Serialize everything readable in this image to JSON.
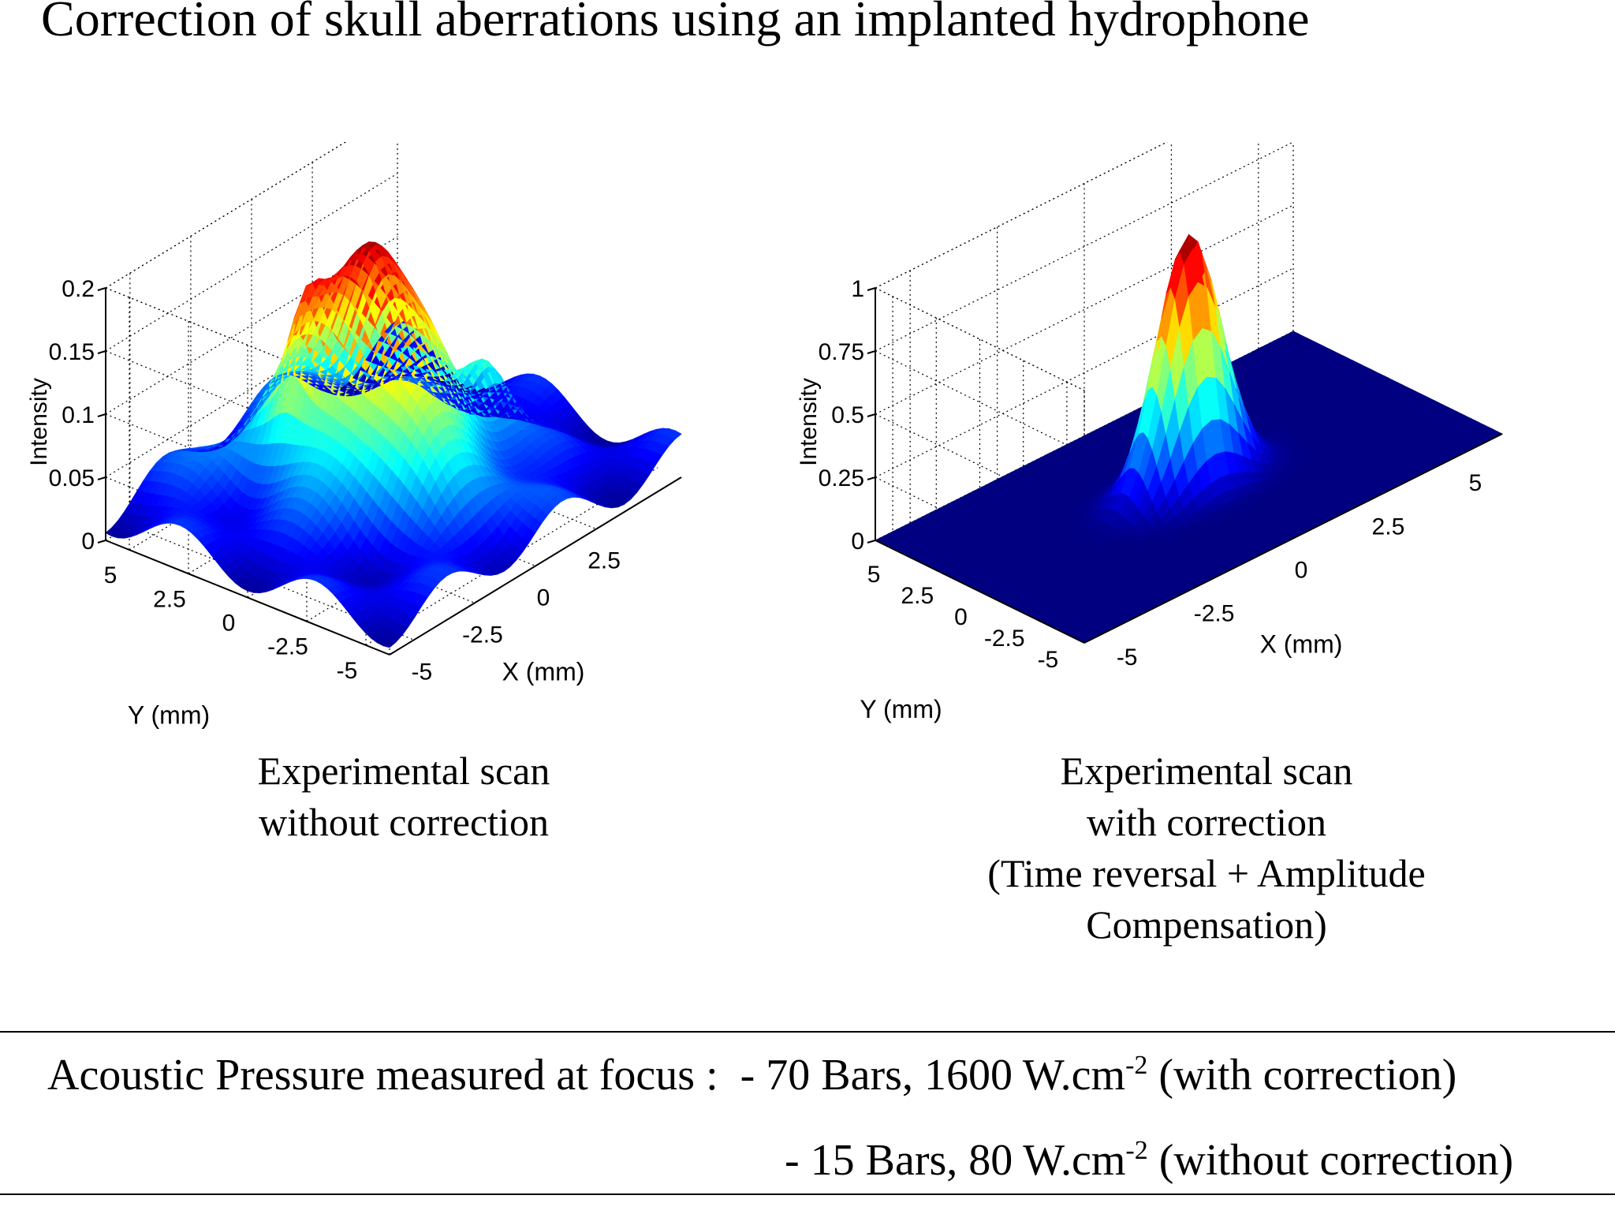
{
  "title": "Correction of skull aberrations using an implanted hydrophone",
  "chart_data": [
    {
      "type": "surface3d",
      "zlabel": "Intensity",
      "xlabel": "X (mm)",
      "ylabel": "Y (mm)",
      "xticks": [
        "-5",
        "-2.5",
        "0",
        "2.5"
      ],
      "yticks": [
        "5",
        "2.5",
        "0",
        "-2.5",
        "-5"
      ],
      "zticks": [
        "0",
        "0.05",
        "0.1",
        "0.15",
        "0.2"
      ],
      "xlim": [
        -6,
        6
      ],
      "ylim": [
        -6,
        6
      ],
      "zlim": [
        0,
        0.2
      ],
      "peak_intensity": 0.2,
      "contour_levels": [
        0.05,
        0.1,
        0.15
      ],
      "colormap": "jet"
    },
    {
      "type": "surface3d",
      "zlabel": "Intensity",
      "xlabel": "X (mm)",
      "ylabel": "Y (mm)",
      "xticks": [
        "-5",
        "-2.5",
        "0",
        "2.5",
        "5"
      ],
      "yticks": [
        "5",
        "2.5",
        "0",
        "-2.5",
        "-5"
      ],
      "zticks": [
        "0",
        "0.25",
        "0.5",
        "0.75",
        "1"
      ],
      "xlim": [
        -6,
        6
      ],
      "ylim": [
        -6,
        6
      ],
      "zlim": [
        0,
        1
      ],
      "peak_intensity": 1,
      "contour_levels": [
        0.25,
        0.5,
        0.75
      ],
      "colormap": "jet"
    }
  ],
  "captions": {
    "left": [
      "Experimental scan",
      "without correction"
    ],
    "right": [
      "Experimental scan",
      "with correction",
      "(Time reversal + Amplitude",
      "Compensation)"
    ]
  },
  "pressure": {
    "label": "Acoustic Pressure measured at focus :",
    "line1_value": "- 70 Bars, 1600 W.cm",
    "line1_exp": "-2",
    "line1_note": "(with correction)",
    "line2_value": "- 15 Bars, 80 W.cm",
    "line2_exp": "-2",
    "line2_note": "(without correction)"
  }
}
